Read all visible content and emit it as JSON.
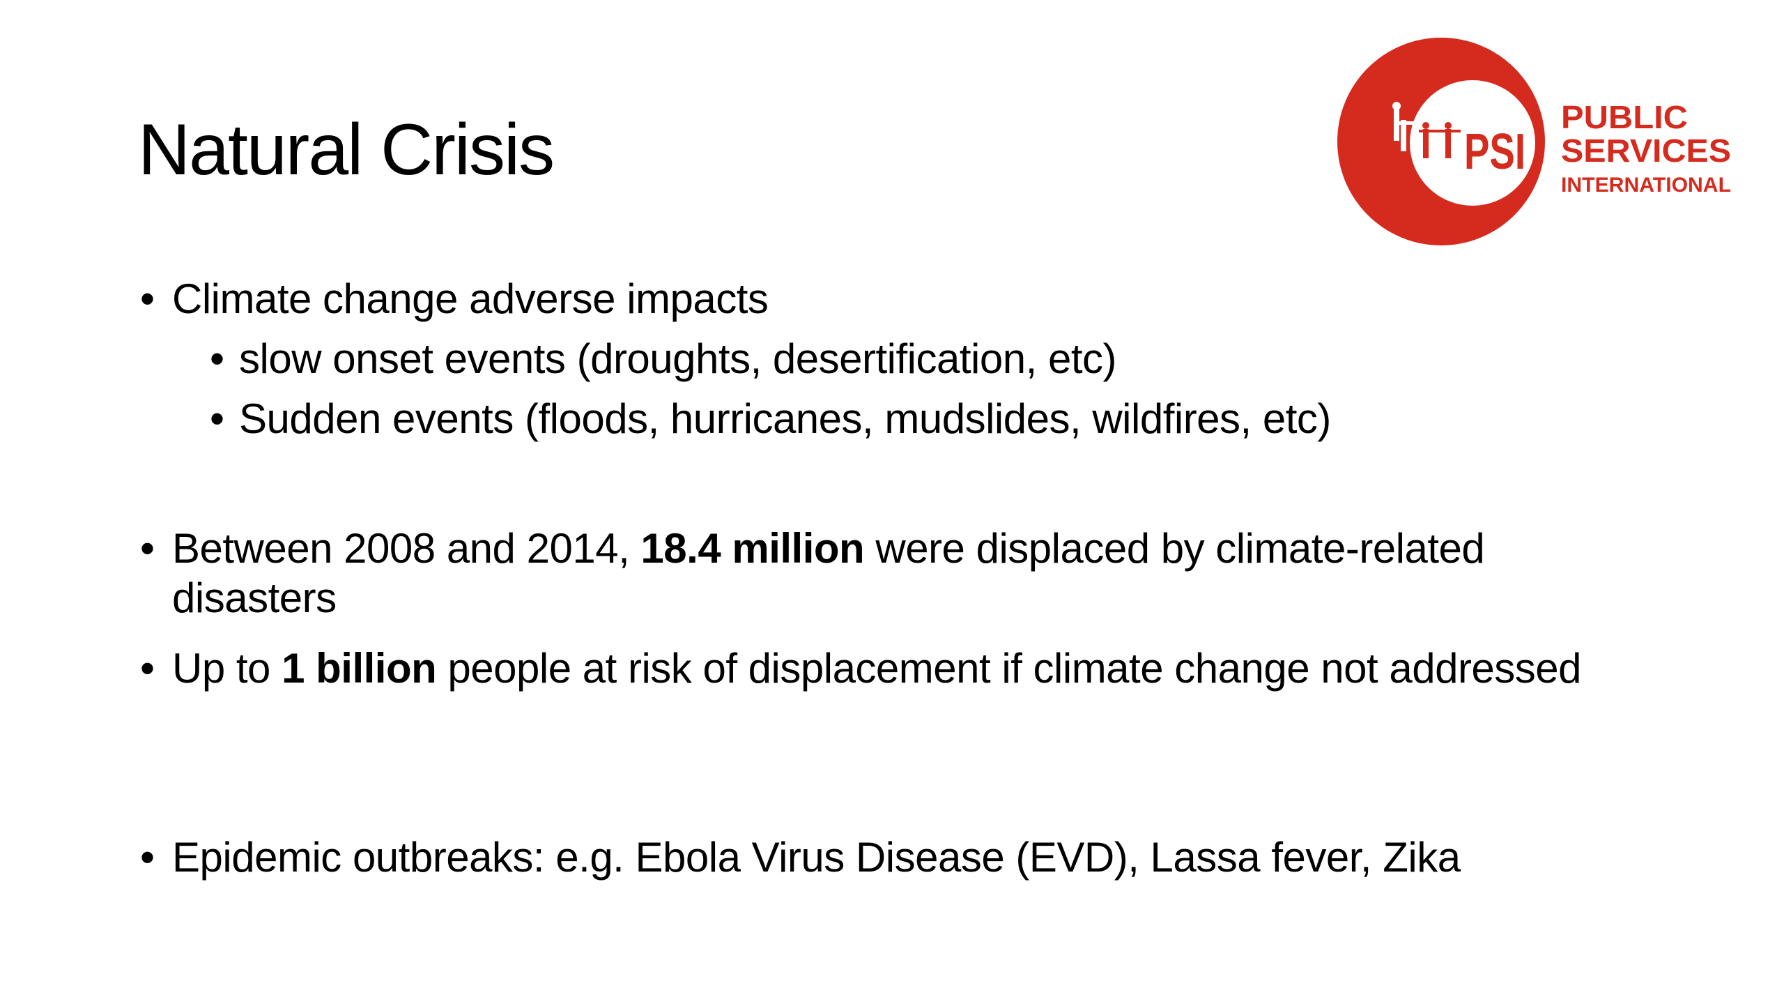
{
  "slide": {
    "title": "Natural Crisis",
    "bullets": [
      {
        "text": "Climate change adverse impacts"
      },
      {
        "text": "slow onset events (droughts, desertification, etc)"
      },
      {
        "text": "Sudden events (floods, hurricanes, mudslides, wildfires, etc)"
      },
      {
        "pre": "Between 2008 and 2014, ",
        "bold": "18.4 million",
        "post": " were displaced by climate-related disasters"
      },
      {
        "pre": "Up to ",
        "bold": "1 billion",
        "post": " people at risk of displacement if climate change not addressed"
      },
      {
        "text": "Epidemic outbreaks: e.g. Ebola Virus Disease (EVD), Lassa fever, Zika"
      }
    ],
    "bullet_glyph": "•"
  },
  "logo": {
    "mark": "PSI",
    "line1": "PUBLIC",
    "line2": "SERVICES",
    "line3": "INTERNATIONAL",
    "color": "#d52b1e"
  }
}
